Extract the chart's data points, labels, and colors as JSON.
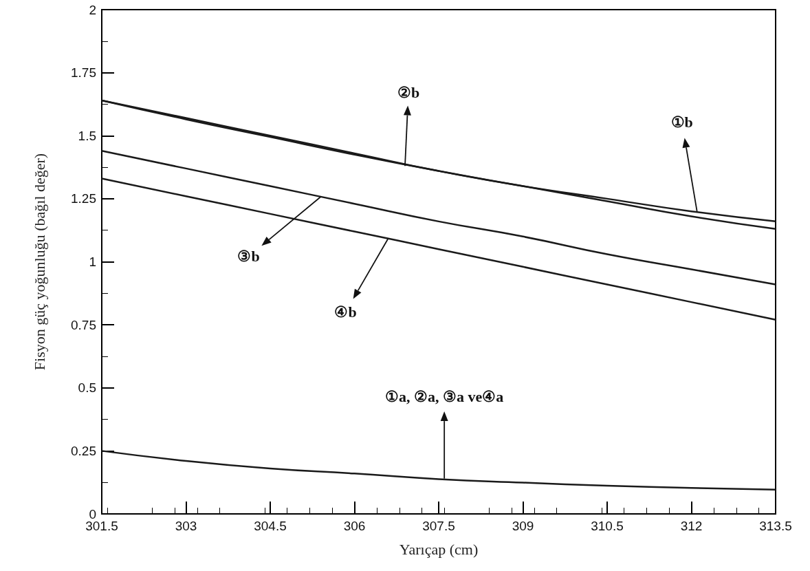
{
  "chart_data": {
    "type": "line",
    "xlabel": "Yarıçap (cm)",
    "ylabel": "Fisyon güç yoğunluğu (bağıl değer)",
    "xlim": [
      301.5,
      313.5
    ],
    "xticks": [
      301.5,
      303,
      304.5,
      306,
      307.5,
      309,
      310.5,
      312,
      313.5
    ],
    "ylim": [
      0,
      2
    ],
    "yticks": [
      0,
      0.25,
      0.5,
      0.75,
      1,
      1.25,
      1.5,
      1.75,
      2
    ],
    "grid": false,
    "marker": "none",
    "line_style": "solid",
    "series": [
      {
        "color": "#1a1a1a",
        "x": [
          301.5,
          303,
          304.5,
          306,
          307.5,
          309,
          310.5,
          312,
          313.5
        ],
        "values": [
          1.64,
          1.57,
          1.5,
          1.43,
          1.36,
          1.3,
          1.25,
          1.2,
          1.16
        ]
      },
      {
        "color": "#1a1a1a",
        "x": [
          301.5,
          303,
          304.5,
          306,
          307.5,
          309,
          310.5,
          312,
          313.5
        ],
        "values": [
          1.64,
          1.565,
          1.495,
          1.425,
          1.36,
          1.3,
          1.24,
          1.18,
          1.13
        ]
      },
      {
        "color": "#1a1a1a",
        "x": [
          301.5,
          303,
          304.5,
          306,
          307.5,
          309,
          310.5,
          312,
          313.5
        ],
        "values": [
          1.44,
          1.37,
          1.3,
          1.23,
          1.16,
          1.1,
          1.03,
          0.97,
          0.91
        ]
      },
      {
        "color": "#1a1a1a",
        "x": [
          301.5,
          303,
          304.5,
          306,
          307.5,
          309,
          310.5,
          312,
          313.5
        ],
        "values": [
          1.33,
          1.26,
          1.19,
          1.12,
          1.05,
          0.98,
          0.91,
          0.84,
          0.77
        ]
      },
      {
        "color": "#1a1a1a",
        "x": [
          301.5,
          303,
          304.5,
          306,
          307.5,
          309,
          310.5,
          312,
          313.5
        ],
        "values": [
          0.25,
          0.21,
          0.18,
          0.16,
          0.138,
          0.124,
          0.112,
          0.103,
          0.096
        ]
      }
    ],
    "annotations": [
      {
        "text": "②b",
        "x": 306.9,
        "y": 1.38
      },
      {
        "text": "①b",
        "x": 312.1,
        "y": 1.2
      },
      {
        "text": "③b",
        "x": 305.4,
        "y": 1.258
      },
      {
        "text": "④b",
        "x": 306.6,
        "y": 1.092
      },
      {
        "text": "①a, ②a, ③a ve④a",
        "x": 307.6,
        "y": 0.14
      }
    ]
  }
}
